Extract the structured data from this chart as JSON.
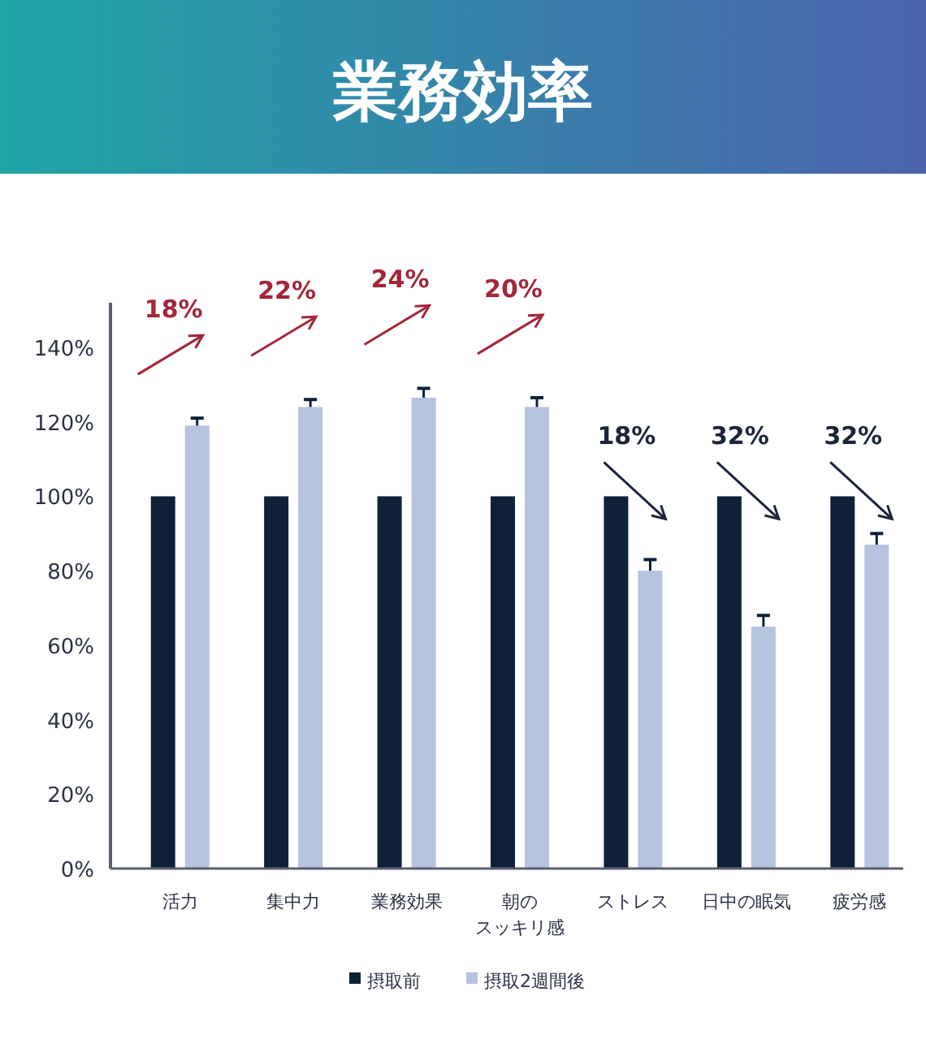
{
  "chart_data": {
    "type": "bar",
    "title": "業務効率",
    "categories": [
      "活力",
      "集中力",
      "業務効果",
      "朝のスッキリ感",
      "ストレス",
      "日中の眠気",
      "疲労感"
    ],
    "series": [
      {
        "name": "摂取前",
        "color": "#0e2139",
        "values": [
          100,
          100,
          100,
          100,
          100,
          100,
          100
        ]
      },
      {
        "name": "摂取2週間後",
        "color": "#b6c3df",
        "values": [
          119,
          124,
          126.5,
          124,
          80,
          65,
          87
        ],
        "errors": [
          [
            119,
            121
          ],
          [
            124,
            126
          ],
          [
            126.5,
            129
          ],
          [
            124,
            126.5
          ],
          [
            80,
            83
          ],
          [
            65,
            68
          ],
          [
            87,
            90
          ]
        ]
      }
    ],
    "ylim": [
      0,
      152
    ],
    "yticks": [
      {
        "value": 0,
        "label": "0%"
      },
      {
        "value": 20,
        "label": "20%"
      },
      {
        "value": 40,
        "label": "40%"
      },
      {
        "value": 60,
        "label": "60%"
      },
      {
        "value": 80,
        "label": "80%"
      },
      {
        "value": 100,
        "label": "100%"
      },
      {
        "value": 120,
        "label": "120%"
      },
      {
        "value": 140,
        "label": "140%"
      }
    ],
    "annotations": [
      "18%",
      "22%",
      "24%",
      "20%",
      "18%",
      "32%",
      "32%"
    ],
    "legend": "bottom",
    "grid": false
  }
}
